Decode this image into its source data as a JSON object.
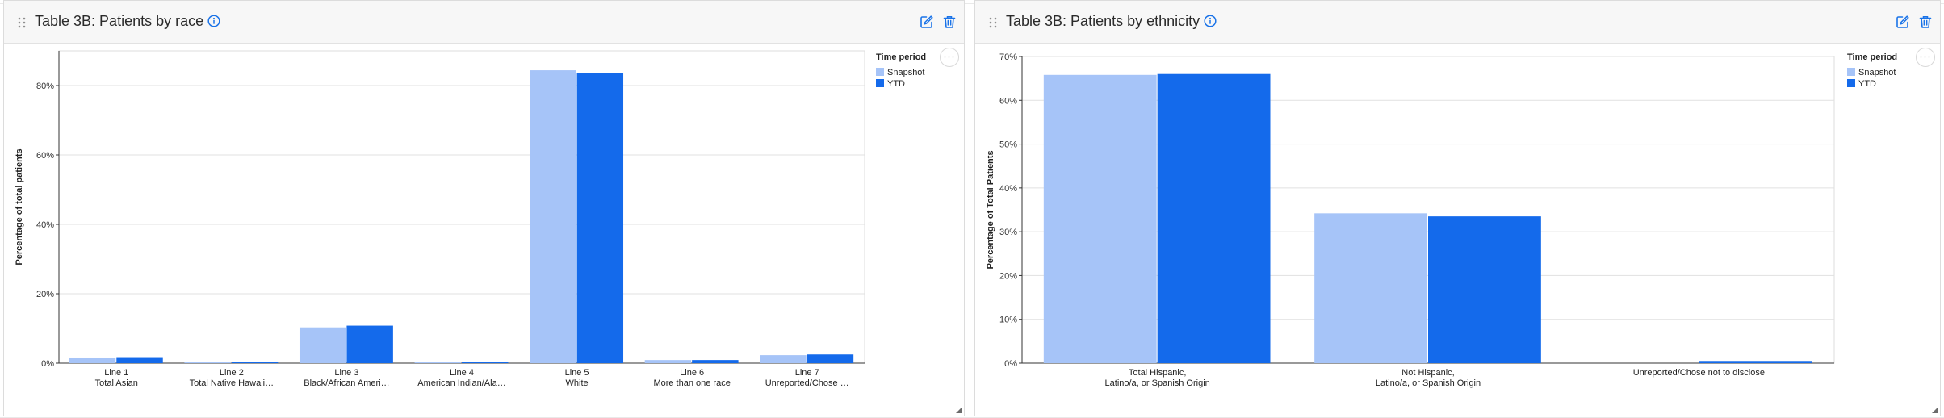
{
  "panels": [
    {
      "title": "Table 3B: Patients by race",
      "legend": {
        "title": "Time period",
        "items": [
          {
            "label": "Snapshot",
            "color": "#a6c4f8"
          },
          {
            "label": "YTD",
            "color": "#146aeb"
          }
        ]
      },
      "more_label": "···"
    },
    {
      "title": "Table 3B: Patients by ethnicity",
      "legend": {
        "title": "Time period",
        "items": [
          {
            "label": "Snapshot",
            "color": "#a6c4f8"
          },
          {
            "label": "YTD",
            "color": "#146aeb"
          }
        ]
      },
      "more_label": "···"
    }
  ],
  "icons": [
    "drag-handle-icon",
    "info-icon",
    "edit-icon",
    "trash-icon",
    "more-icon",
    "resize-icon"
  ],
  "chart_data": [
    {
      "type": "bar",
      "title": "",
      "xlabel": "",
      "ylabel": "Percentage of total patients",
      "categories": [
        [
          "Line 1",
          "Total Asian"
        ],
        [
          "Line 2",
          "Total Native Hawaii…"
        ],
        [
          "Line 3",
          "Black/African Ameri…"
        ],
        [
          "Line 4",
          "American Indian/Ala…"
        ],
        [
          "Line 5",
          "White"
        ],
        [
          "Line 6",
          "More than one race"
        ],
        [
          "Line 7",
          "Unreported/Chose …"
        ]
      ],
      "series": [
        {
          "name": "Snapshot",
          "color": "#a6c4f8",
          "values": [
            1.4,
            0.3,
            10.3,
            0.3,
            84.4,
            0.9,
            2.3
          ]
        },
        {
          "name": "YTD",
          "color": "#146aeb",
          "values": [
            1.5,
            0.3,
            10.8,
            0.4,
            83.6,
            0.9,
            2.5
          ]
        }
      ],
      "ylim": [
        0,
        90
      ],
      "yticks": [
        0,
        20,
        40,
        60,
        80
      ],
      "tick_format": "%",
      "grid": true,
      "legend_position": "right"
    },
    {
      "type": "bar",
      "title": "",
      "xlabel": "",
      "ylabel": "Percentage of Total Patients",
      "categories": [
        [
          "Total Hispanic,",
          "Latino/a, or Spanish Origin"
        ],
        [
          "Not Hispanic,",
          "Latino/a, or Spanish Origin"
        ],
        [
          "Unreported/Chose not to disclose"
        ]
      ],
      "series": [
        {
          "name": "Snapshot",
          "color": "#a6c4f8",
          "values": [
            65.8,
            34.2,
            0.0
          ]
        },
        {
          "name": "YTD",
          "color": "#146aeb",
          "values": [
            66.0,
            33.5,
            0.5
          ]
        }
      ],
      "ylim": [
        0,
        70
      ],
      "yticks": [
        0,
        10,
        20,
        30,
        40,
        50,
        60,
        70
      ],
      "tick_format": "%",
      "grid": true,
      "legend_position": "right"
    }
  ]
}
